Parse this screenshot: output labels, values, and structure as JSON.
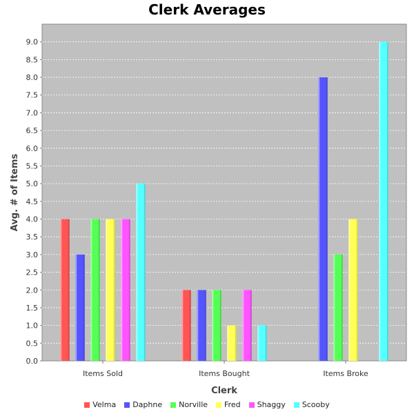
{
  "chart_data": {
    "type": "bar",
    "title": "Clerk Averages",
    "xlabel": "Clerk",
    "ylabel": "Avg. # of Items",
    "categories": [
      "Items Sold",
      "Items Bought",
      "Items Broke"
    ],
    "ylim": [
      0,
      9.5
    ],
    "yticks": [
      "0.0",
      "0.5",
      "1.0",
      "1.5",
      "2.0",
      "2.5",
      "3.0",
      "3.5",
      "4.0",
      "4.5",
      "5.0",
      "5.5",
      "6.0",
      "6.5",
      "7.0",
      "7.5",
      "8.0",
      "8.5",
      "9.0"
    ],
    "grid": true,
    "legend_position": "bottom",
    "plot_background": "#c0c0c0",
    "series": [
      {
        "name": "Velma",
        "color": "#ff5555",
        "values": [
          4,
          2,
          0
        ]
      },
      {
        "name": "Daphne",
        "color": "#5555ff",
        "values": [
          3,
          2,
          8
        ]
      },
      {
        "name": "Norville",
        "color": "#55ff55",
        "values": [
          4,
          2,
          3
        ]
      },
      {
        "name": "Fred",
        "color": "#ffff55",
        "values": [
          4,
          1,
          4
        ]
      },
      {
        "name": "Shaggy",
        "color": "#ff55ff",
        "values": [
          4,
          2,
          0
        ]
      },
      {
        "name": "Scooby",
        "color": "#55ffff",
        "values": [
          5,
          1,
          9
        ]
      }
    ]
  }
}
